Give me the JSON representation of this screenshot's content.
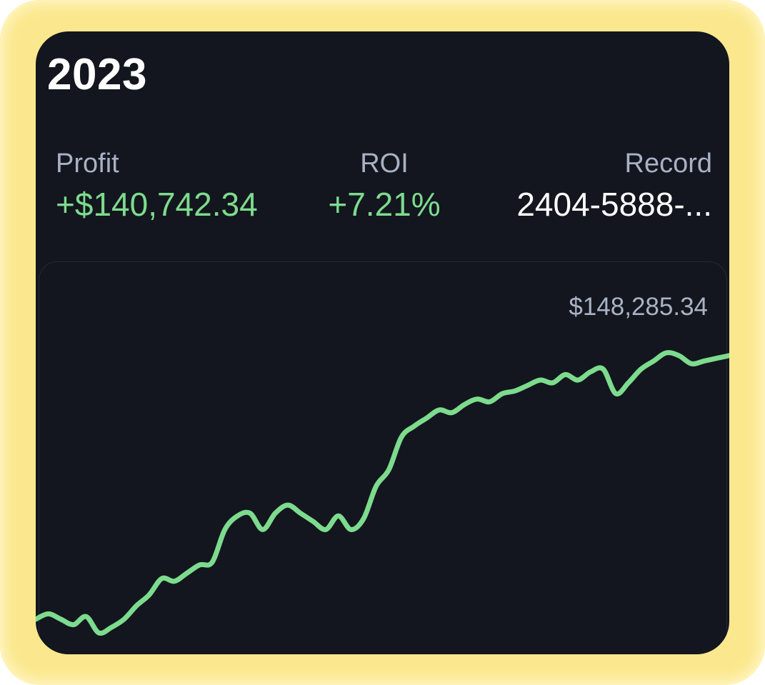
{
  "header": {
    "year": "2023"
  },
  "stats": {
    "profit": {
      "label": "Profit",
      "value": "+$140,742.34"
    },
    "roi": {
      "label": "ROI",
      "value": "+7.21%"
    },
    "record": {
      "label": "Record",
      "value": "2404-5888-..."
    }
  },
  "chart": {
    "max_label": "$148,285.34"
  },
  "colors": {
    "accent": "#7ddb8e",
    "background": "#13161e",
    "frame_glow": "#fbe88e",
    "label": "#a8b1c5"
  },
  "chart_data": {
    "type": "line",
    "title": "",
    "xlabel": "",
    "ylabel": "",
    "max_label": "$148,285.34",
    "grid": false,
    "series": [
      {
        "values": [
          0.05,
          0.07,
          0.05,
          0.03,
          0.06,
          0.0,
          0.02,
          0.05,
          0.1,
          0.14,
          0.2,
          0.19,
          0.22,
          0.25,
          0.26,
          0.38,
          0.43,
          0.44,
          0.38,
          0.44,
          0.47,
          0.44,
          0.41,
          0.38,
          0.43,
          0.38,
          0.42,
          0.54,
          0.6,
          0.72,
          0.76,
          0.79,
          0.82,
          0.81,
          0.84,
          0.86,
          0.85,
          0.88,
          0.89,
          0.91,
          0.93,
          0.92,
          0.95,
          0.93,
          0.96,
          0.97,
          0.88,
          0.92,
          0.97,
          1.0,
          1.03,
          1.02,
          0.99,
          1.0,
          1.01,
          1.02
        ]
      }
    ]
  }
}
